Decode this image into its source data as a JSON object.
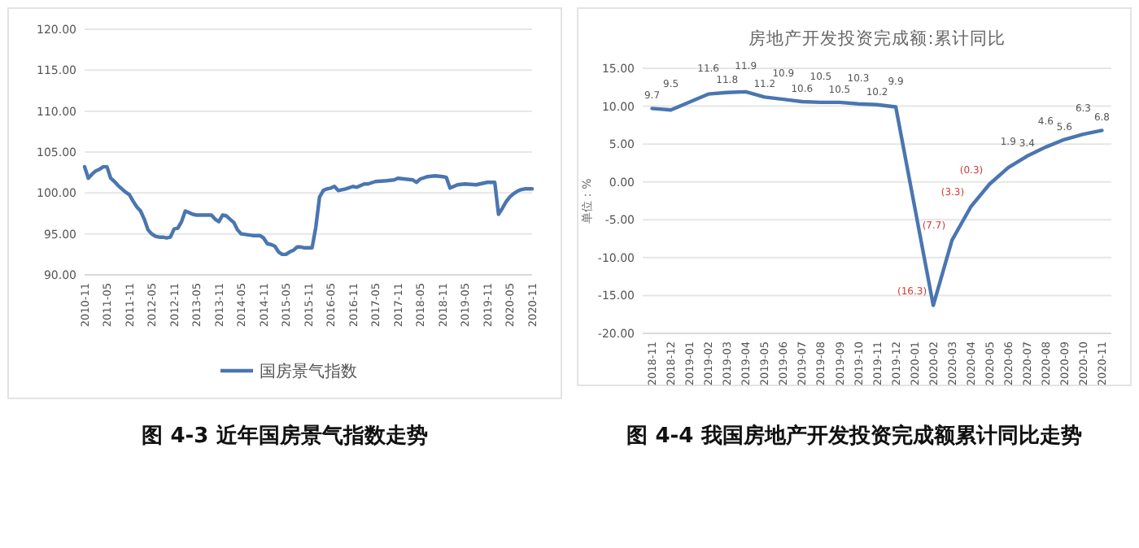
{
  "chart_data": [
    {
      "type": "line",
      "annotations": [
        "图 4-3  近年国房景气指数走势"
      ],
      "x": [
        "2010-11",
        "2010-12",
        "2011-01",
        "2011-02",
        "2011-03",
        "2011-04",
        "2011-05",
        "2011-06",
        "2011-07",
        "2011-08",
        "2011-09",
        "2011-10",
        "2011-11",
        "2011-12",
        "2012-01",
        "2012-02",
        "2012-03",
        "2012-04",
        "2012-05",
        "2012-06",
        "2012-07",
        "2012-08",
        "2012-09",
        "2012-10",
        "2012-11",
        "2012-12",
        "2013-01",
        "2013-02",
        "2013-03",
        "2013-04",
        "2013-05",
        "2013-07",
        "2013-09",
        "2013-10",
        "2013-11",
        "2013-12",
        "2014-01",
        "2014-02",
        "2014-03",
        "2014-04",
        "2014-05",
        "2014-08",
        "2014-10",
        "2014-11",
        "2014-12",
        "2015-01",
        "2015-02",
        "2015-03",
        "2015-04",
        "2015-05",
        "2015-06",
        "2015-07",
        "2015-08",
        "2015-09",
        "2015-10",
        "2015-11",
        "2015-12",
        "2016-01",
        "2016-02",
        "2016-03",
        "2016-04",
        "2016-05",
        "2016-06",
        "2016-07",
        "2016-09",
        "2016-11",
        "2016-12",
        "2017-01",
        "2017-02",
        "2017-03",
        "2017-05",
        "2017-08",
        "2017-10",
        "2017-11",
        "2018-01",
        "2018-03",
        "2018-04",
        "2018-05",
        "2018-07",
        "2018-09",
        "2018-11",
        "2018-12",
        "2019-01",
        "2019-02",
        "2019-03",
        "2019-05",
        "2019-08",
        "2019-11",
        "2020-01",
        "2020-02",
        "2020-03",
        "2020-04",
        "2020-05",
        "2020-06",
        "2020-07",
        "2020-08",
        "2020-09",
        "2020-10",
        "2020-11"
      ],
      "series": [
        {
          "name": "国房景气指数",
          "color": "#4a76b0",
          "values": [
            103.2,
            101.8,
            102.3,
            102.7,
            102.9,
            103.2,
            103.2,
            101.8,
            101.4,
            100.9,
            100.5,
            100.1,
            99.8,
            99.0,
            98.3,
            97.8,
            96.8,
            95.5,
            95.0,
            94.7,
            94.6,
            94.6,
            94.5,
            94.6,
            95.6,
            95.7,
            96.5,
            97.8,
            97.6,
            97.4,
            97.3,
            97.3,
            97.3,
            96.8,
            96.5,
            97.3,
            97.2,
            96.8,
            96.4,
            95.5,
            95.0,
            94.8,
            94.8,
            94.5,
            93.8,
            93.7,
            93.5,
            92.8,
            92.5,
            92.5,
            92.8,
            93.0,
            93.4,
            93.4,
            93.3,
            93.3,
            93.3,
            95.8,
            99.5,
            100.3,
            100.5,
            100.6,
            100.8,
            100.3,
            100.5,
            100.8,
            100.7,
            100.9,
            101.1,
            101.1,
            101.4,
            101.5,
            101.6,
            101.8,
            101.7,
            101.6,
            101.3,
            101.7,
            102.0,
            102.1,
            102.0,
            101.9,
            100.6,
            100.8,
            101.0,
            101.1,
            101.0,
            101.3,
            101.3,
            97.4,
            98.1,
            98.9,
            99.5,
            99.9,
            100.2,
            100.4,
            100.5,
            100.5,
            100.5
          ]
        }
      ],
      "xlim": [
        "2010-11",
        "2020-11"
      ],
      "xticks": [
        "2010-11",
        "2011-05",
        "2011-11",
        "2012-05",
        "2012-11",
        "2013-05",
        "2013-11",
        "2014-05",
        "2014-11",
        "2015-05",
        "2015-11",
        "2016-05",
        "2016-11",
        "2017-05",
        "2017-11",
        "2018-05",
        "2018-11",
        "2019-05",
        "2019-11",
        "2020-05",
        "2020-11"
      ],
      "ylim": [
        90,
        120
      ],
      "yticks": [
        {
          "value": 90,
          "label": "90.00"
        },
        {
          "value": 95,
          "label": "95.00"
        },
        {
          "value": 100,
          "label": "100.00"
        },
        {
          "value": 105,
          "label": "105.00"
        },
        {
          "value": 110,
          "label": "110.00"
        },
        {
          "value": 115,
          "label": "115.00"
        },
        {
          "value": 120,
          "label": "120.00"
        }
      ],
      "grid": "y",
      "legend": "bottom"
    },
    {
      "type": "line",
      "title": "房地产开发投资完成额:累计同比",
      "ylabel": "单位：%",
      "annotations": [
        "图 4-4  我国房地产开发投资完成额累计同比走势"
      ],
      "categories": [
        "2018-11",
        "2018-12",
        "2019-01",
        "2019-02",
        "2019-03",
        "2019-04",
        "2019-05",
        "2019-06",
        "2019-07",
        "2019-08",
        "2019-09",
        "2019-10",
        "2019-11",
        "2019-12",
        "2020-01",
        "2020-02",
        "2020-03",
        "2020-04",
        "2020-05",
        "2020-06",
        "2020-07",
        "2020-08",
        "2020-09",
        "2020-10",
        "2020-11"
      ],
      "series": [
        {
          "color": "#4a76b0",
          "values": [
            9.7,
            9.5,
            null,
            11.6,
            11.8,
            11.9,
            11.2,
            10.9,
            10.6,
            10.5,
            10.5,
            10.3,
            10.2,
            9.9,
            null,
            -16.3,
            -7.7,
            -3.3,
            -0.3,
            1.9,
            3.4,
            4.6,
            5.6,
            6.3,
            6.8
          ],
          "value_labels": [
            "9.7",
            "9.5",
            null,
            "11.6",
            "11.8",
            "11.9",
            "11.2",
            "10.9",
            "10.6",
            "10.5",
            "10.5",
            "10.3",
            "10.2",
            "9.9",
            null,
            "(16.3)",
            "(7.7)",
            "(3.3)",
            "(0.3)",
            "1.9",
            "3.4",
            "4.6",
            "5.6",
            "6.3",
            "6.8"
          ]
        }
      ],
      "ylim": [
        -20,
        15
      ],
      "yticks": [
        {
          "value": -20,
          "label": "-20.00"
        },
        {
          "value": -15,
          "label": "-15.00"
        },
        {
          "value": -10,
          "label": "-10.00"
        },
        {
          "value": -5,
          "label": "-5.00"
        },
        {
          "value": 0,
          "label": "0.00"
        },
        {
          "value": 5,
          "label": "5.00"
        },
        {
          "value": 10,
          "label": "10.00"
        },
        {
          "value": 15,
          "label": "15.00"
        }
      ],
      "grid": "y"
    }
  ]
}
